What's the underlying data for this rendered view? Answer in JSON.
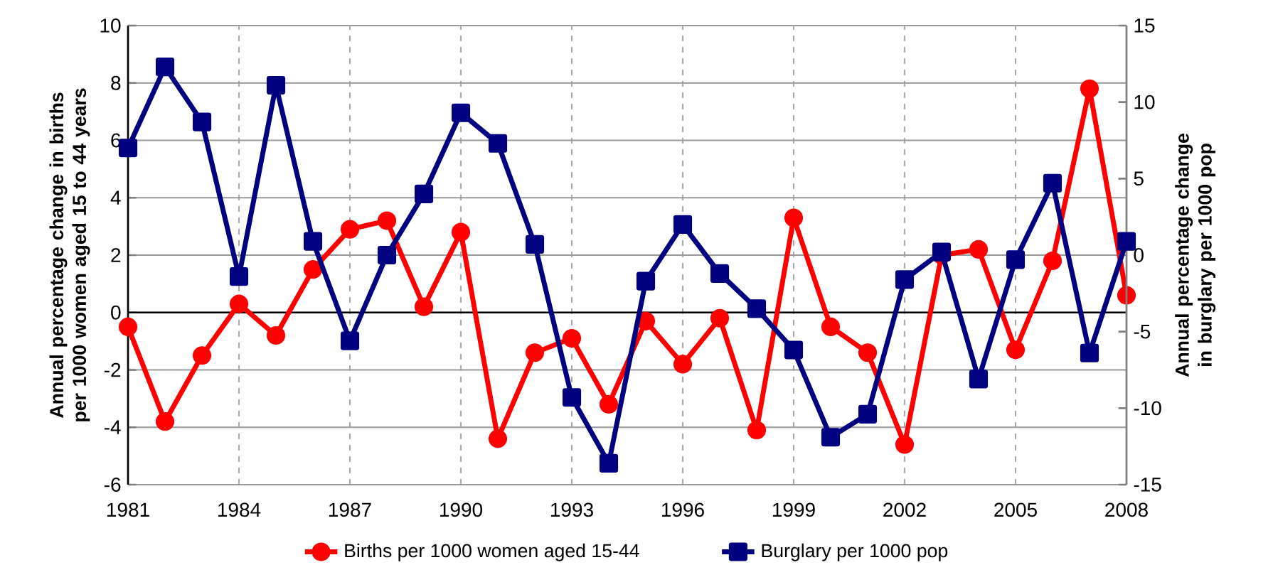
{
  "chart_data": {
    "type": "line",
    "x": [
      1981,
      1982,
      1983,
      1984,
      1985,
      1986,
      1987,
      1988,
      1989,
      1990,
      1991,
      1992,
      1993,
      1994,
      1995,
      1996,
      1997,
      1998,
      1999,
      2000,
      2001,
      2002,
      2003,
      2004,
      2005,
      2006,
      2007,
      2008
    ],
    "series": [
      {
        "name": "Births per 1000 women aged 15-44",
        "color": "#ff0000",
        "marker": "circle",
        "values": [
          -0.5,
          -3.8,
          -1.5,
          0.3,
          -0.8,
          1.5,
          2.9,
          3.2,
          0.2,
          2.8,
          -4.4,
          -1.4,
          -0.9,
          -3.2,
          -0.3,
          -1.8,
          -0.2,
          -4.1,
          3.3,
          -0.5,
          -1.4,
          -4.6,
          2.0,
          2.2,
          -1.3,
          1.8,
          7.8,
          0.6
        ]
      },
      {
        "name": "Burglary per 1000 pop",
        "color": "#000080",
        "marker": "square",
        "axis": "y2",
        "values": [
          7.0,
          12.3,
          8.7,
          -1.4,
          11.1,
          0.9,
          -5.6,
          0.0,
          4.0,
          9.3,
          7.3,
          0.7,
          -9.3,
          -13.6,
          -1.7,
          2.0,
          -1.2,
          -3.5,
          -6.2,
          -11.9,
          -10.4,
          -1.6,
          0.2,
          -8.1,
          -0.3,
          4.7,
          -6.4,
          0.9
        ]
      }
    ],
    "ylabel": "Annual percentage  change in births per 1000 women aged 15 to 44 years",
    "y2label": "Annual percentage  change in burglary per 1000 pop",
    "xlim": [
      1981,
      2008
    ],
    "xticks": [
      1981,
      1984,
      1987,
      1990,
      1993,
      1996,
      1999,
      2002,
      2005,
      2008
    ],
    "ylim": [
      -6,
      10
    ],
    "yticks": [
      -6,
      -4,
      -2,
      0,
      2,
      4,
      6,
      8,
      10
    ],
    "y2lim": [
      -15,
      15
    ],
    "y2ticks": [
      -15,
      -10,
      -5,
      0,
      5,
      10,
      15
    ],
    "grid": true,
    "legend": "bottom"
  }
}
